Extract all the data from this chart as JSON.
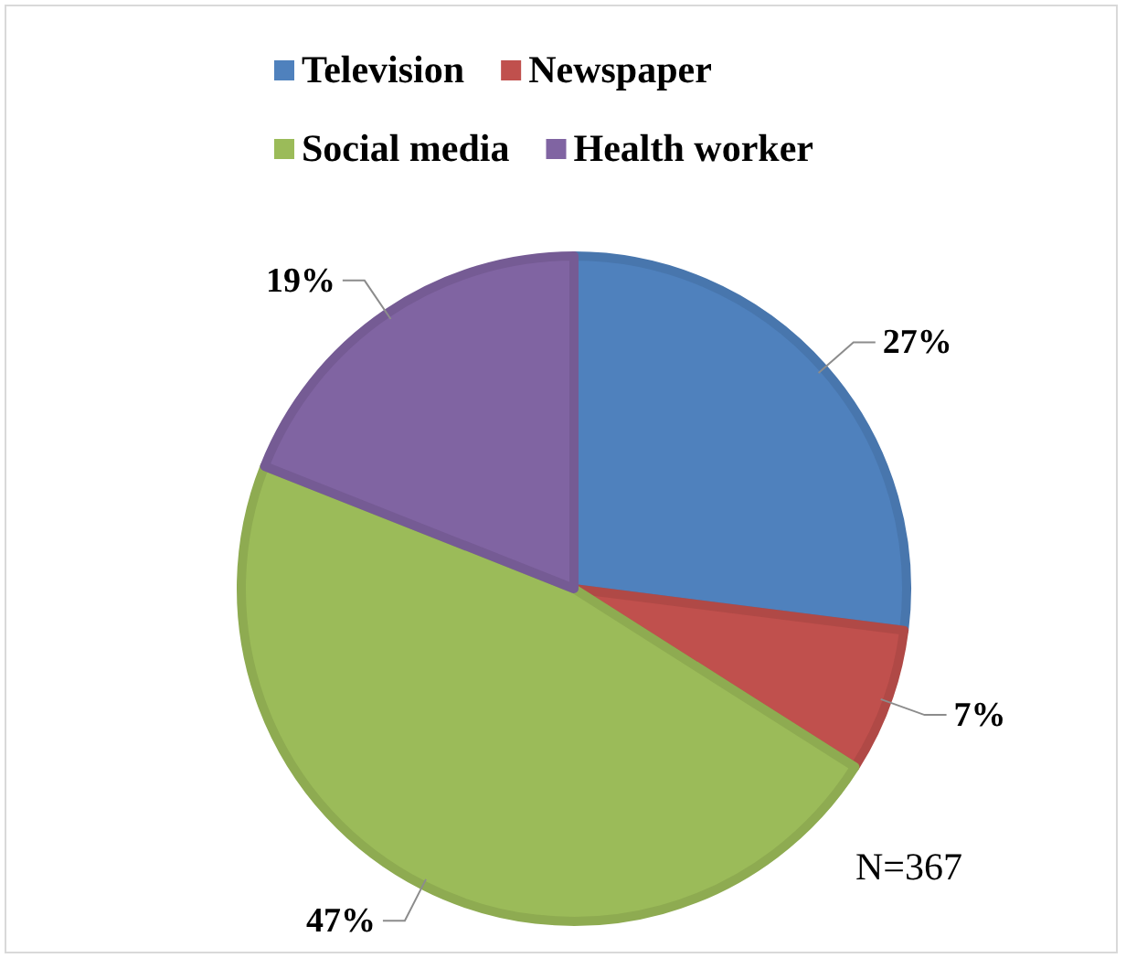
{
  "chart_data": {
    "type": "pie",
    "categories": [
      "Television",
      "Newspaper",
      "Social media",
      "Health worker"
    ],
    "values": [
      27,
      7,
      47,
      19
    ],
    "colors": [
      "#4f81bd",
      "#c0504d",
      "#9bbb59",
      "#8064a2"
    ],
    "value_labels": [
      "27%",
      "7%",
      "47%",
      "19%"
    ],
    "legend": "top",
    "annotations": [
      "N=367"
    ]
  }
}
